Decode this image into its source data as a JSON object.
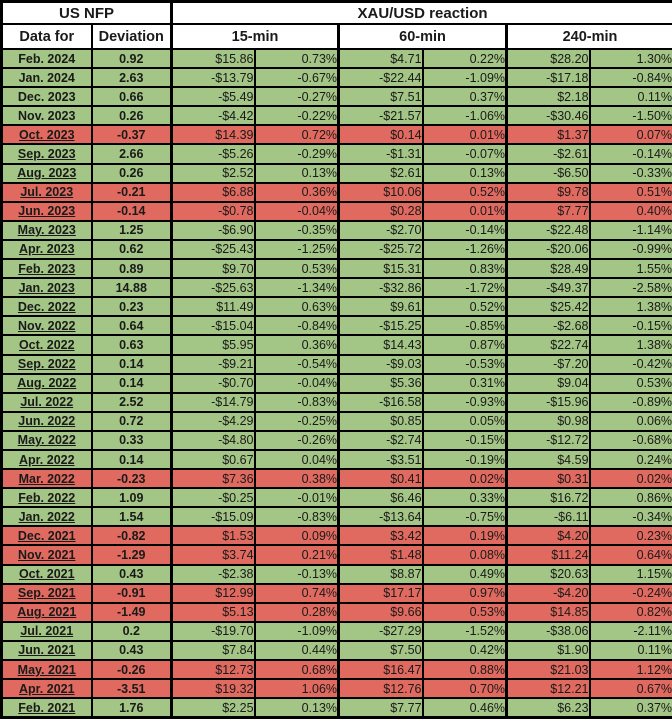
{
  "colors": {
    "row_green": "#a3c585",
    "row_red": "#e06a5f",
    "border": "#000000",
    "header_bg": "#ffffff"
  },
  "chart_data": {
    "type": "table",
    "header": {
      "us_nfp": "US NFP",
      "xauusd_reaction": "XAU/USD reaction",
      "data_for": "Data for",
      "deviation": "Deviation",
      "col_15": "15-min",
      "col_60": "60-min",
      "col_240": "240-min"
    },
    "rows": [
      {
        "month": "Feb. 2024",
        "dev": "0.92",
        "v": [
          "$15.86",
          "0.73%",
          "$4.71",
          "0.22%",
          "$28.20",
          "1.30%"
        ],
        "tone": "green",
        "underline": false
      },
      {
        "month": "Jan. 2024",
        "dev": "2.63",
        "v": [
          "-$13.79",
          "-0.67%",
          "-$22.44",
          "-1.09%",
          "-$17.18",
          "-0.84%"
        ],
        "tone": "green",
        "underline": false
      },
      {
        "month": "Dec. 2023",
        "dev": "0.66",
        "v": [
          "-$5.49",
          "-0.27%",
          "$7.51",
          "0.37%",
          "$2.18",
          "0.11%"
        ],
        "tone": "green",
        "underline": false
      },
      {
        "month": "Nov. 2023",
        "dev": "0.26",
        "v": [
          "-$4.42",
          "-0.22%",
          "-$21.57",
          "-1.06%",
          "-$30.46",
          "-1.50%"
        ],
        "tone": "green",
        "underline": false
      },
      {
        "month": "Oct. 2023",
        "dev": "-0.37",
        "v": [
          "$14.39",
          "0.72%",
          "$0.14",
          "0.01%",
          "$1.37",
          "0.07%"
        ],
        "tone": "red",
        "underline": true
      },
      {
        "month": "Sep. 2023",
        "dev": "2.66",
        "v": [
          "-$5.26",
          "-0.29%",
          "-$1.31",
          "-0.07%",
          "-$2.61",
          "-0.14%"
        ],
        "tone": "green",
        "underline": true
      },
      {
        "month": "Aug. 2023",
        "dev": "0.26",
        "v": [
          "$2.52",
          "0.13%",
          "$2.61",
          "0.13%",
          "-$6.50",
          "-0.33%"
        ],
        "tone": "green",
        "underline": true
      },
      {
        "month": "Jul. 2023",
        "dev": "-0.21",
        "v": [
          "$6.88",
          "0.36%",
          "$10.06",
          "0.52%",
          "$9.78",
          "0.51%"
        ],
        "tone": "red",
        "underline": true
      },
      {
        "month": "Jun. 2023",
        "dev": "-0.14",
        "v": [
          "-$0.78",
          "-0.04%",
          "$0.28",
          "0.01%",
          "$7.77",
          "0.40%"
        ],
        "tone": "red",
        "underline": true
      },
      {
        "month": "May. 2023",
        "dev": "1.25",
        "v": [
          "-$6.90",
          "-0.35%",
          "-$2.70",
          "-0.14%",
          "-$22.48",
          "-1.14%"
        ],
        "tone": "green",
        "underline": true
      },
      {
        "month": "Apr. 2023",
        "dev": "0.62",
        "v": [
          "-$25.43",
          "-1.25%",
          "-$25.72",
          "-1.26%",
          "-$20.06",
          "-0.99%"
        ],
        "tone": "green",
        "underline": true
      },
      {
        "month": "Feb. 2023",
        "dev": "0.89",
        "v": [
          "$9.70",
          "0.53%",
          "$15.31",
          "0.83%",
          "$28.49",
          "1.55%"
        ],
        "tone": "green",
        "underline": true
      },
      {
        "month": "Jan. 2023",
        "dev": "14.88",
        "v": [
          "-$25.63",
          "-1.34%",
          "-$32.86",
          "-1.72%",
          "-$49.37",
          "-2.58%"
        ],
        "tone": "green",
        "underline": true
      },
      {
        "month": "Dec. 2022",
        "dev": "0.23",
        "v": [
          "$11.49",
          "0.63%",
          "$9.61",
          "0.52%",
          "$25.42",
          "1.38%"
        ],
        "tone": "green",
        "underline": true
      },
      {
        "month": "Nov. 2022",
        "dev": "0.64",
        "v": [
          "-$15.04",
          "-0.84%",
          "-$15.25",
          "-0.85%",
          "-$2.68",
          "-0.15%"
        ],
        "tone": "green",
        "underline": true
      },
      {
        "month": "Oct. 2022",
        "dev": "0.63",
        "v": [
          "$5.95",
          "0.36%",
          "$14.43",
          "0.87%",
          "$22.74",
          "1.38%"
        ],
        "tone": "green",
        "underline": true
      },
      {
        "month": "Sep. 2022",
        "dev": "0.14",
        "v": [
          "-$9.21",
          "-0.54%",
          "-$9.03",
          "-0.53%",
          "-$7.20",
          "-0.42%"
        ],
        "tone": "green",
        "underline": true
      },
      {
        "month": "Aug. 2022",
        "dev": "0.14",
        "v": [
          "-$0.70",
          "-0.04%",
          "$5.36",
          "0.31%",
          "$9.04",
          "0.53%"
        ],
        "tone": "green",
        "underline": true
      },
      {
        "month": "Jul. 2022",
        "dev": "2.52",
        "v": [
          "-$14.79",
          "-0.83%",
          "-$16.58",
          "-0.93%",
          "-$15.96",
          "-0.89%"
        ],
        "tone": "green",
        "underline": true
      },
      {
        "month": "Jun. 2022",
        "dev": "0.72",
        "v": [
          "-$4.29",
          "-0.25%",
          "$0.85",
          "0.05%",
          "$0.98",
          "0.06%"
        ],
        "tone": "green",
        "underline": true
      },
      {
        "month": "May. 2022",
        "dev": "0.33",
        "v": [
          "-$4.80",
          "-0.26%",
          "-$2.74",
          "-0.15%",
          "-$12.72",
          "-0.68%"
        ],
        "tone": "green",
        "underline": true
      },
      {
        "month": "Apr. 2022",
        "dev": "0.14",
        "v": [
          "$0.67",
          "0.04%",
          "-$3.51",
          "-0.19%",
          "$4.59",
          "0.24%"
        ],
        "tone": "green",
        "underline": true
      },
      {
        "month": "Mar. 2022",
        "dev": "-0.23",
        "v": [
          "$7.36",
          "0.38%",
          "$0.41",
          "0.02%",
          "$0.31",
          "0.02%"
        ],
        "tone": "red",
        "underline": true
      },
      {
        "month": "Feb. 2022",
        "dev": "1.09",
        "v": [
          "-$0.25",
          "-0.01%",
          "$6.46",
          "0.33%",
          "$16.72",
          "0.86%"
        ],
        "tone": "green",
        "underline": true
      },
      {
        "month": "Jan. 2022",
        "dev": "1.54",
        "v": [
          "-$15.09",
          "-0.83%",
          "-$13.64",
          "-0.75%",
          "-$6.11",
          "-0.34%"
        ],
        "tone": "green",
        "underline": true
      },
      {
        "month": "Dec. 2021",
        "dev": "-0.82",
        "v": [
          "$1.53",
          "0.09%",
          "$3.42",
          "0.19%",
          "$4.20",
          "0.23%"
        ],
        "tone": "red",
        "underline": true
      },
      {
        "month": "Nov. 2021",
        "dev": "-1.29",
        "v": [
          "$3.74",
          "0.21%",
          "$1.48",
          "0.08%",
          "$11.24",
          "0.64%"
        ],
        "tone": "red",
        "underline": true
      },
      {
        "month": "Oct. 2021",
        "dev": "0.43",
        "v": [
          "-$2.38",
          "-0.13%",
          "$8.87",
          "0.49%",
          "$20.63",
          "1.15%"
        ],
        "tone": "green",
        "underline": true
      },
      {
        "month": "Sep. 2021",
        "dev": "-0.91",
        "v": [
          "$12.99",
          "0.74%",
          "$17.17",
          "0.97%",
          "-$4.20",
          "-0.24%"
        ],
        "tone": "red",
        "underline": true
      },
      {
        "month": "Aug. 2021",
        "dev": "-1.49",
        "v": [
          "$5.13",
          "0.28%",
          "$9.66",
          "0.53%",
          "$14.85",
          "0.82%"
        ],
        "tone": "red",
        "underline": true
      },
      {
        "month": "Jul. 2021",
        "dev": "0.2",
        "v": [
          "-$19.70",
          "-1.09%",
          "-$27.29",
          "-1.52%",
          "-$38.06",
          "-2.11%"
        ],
        "tone": "green",
        "underline": true
      },
      {
        "month": "Jun. 2021",
        "dev": "0.43",
        "v": [
          "$7.84",
          "0.44%",
          "$7.50",
          "0.42%",
          "$1.90",
          "0.11%"
        ],
        "tone": "green",
        "underline": true
      },
      {
        "month": "May. 2021",
        "dev": "-0.26",
        "v": [
          "$12.73",
          "0.68%",
          "$16.47",
          "0.88%",
          "$21.03",
          "1.12%"
        ],
        "tone": "red",
        "underline": true
      },
      {
        "month": "Apr. 2021",
        "dev": "-3.51",
        "v": [
          "$19.32",
          "1.06%",
          "$12.76",
          "0.70%",
          "$12.21",
          "0.67%"
        ],
        "tone": "red",
        "underline": true
      },
      {
        "month": "Feb. 2021",
        "dev": "1.76",
        "v": [
          "$2.25",
          "0.13%",
          "$7.77",
          "0.46%",
          "$6.23",
          "0.37%"
        ],
        "tone": "green",
        "underline": true
      }
    ]
  }
}
